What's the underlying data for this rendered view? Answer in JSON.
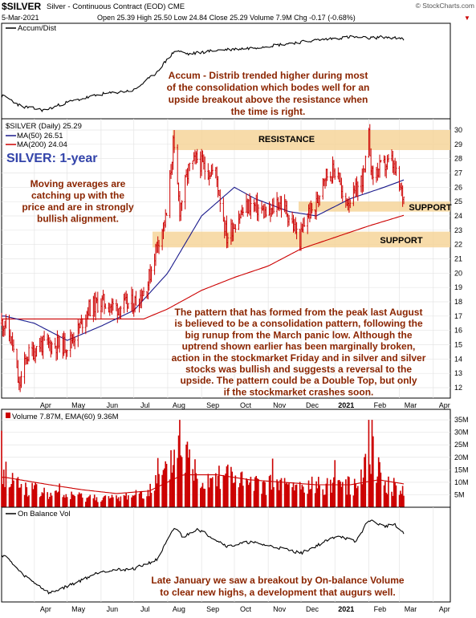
{
  "header": {
    "symbol": "$SILVER",
    "description": "Silver - Continuous Contract (EOD)",
    "exchange": "CME",
    "date": "5-Mar-2021",
    "quote": "Open 25.39  High 25.50  Low 24.84  Close 25.29  Volume 7.9M  Chg -0.17 (-0.68%)",
    "chg_arrow": "▼",
    "brand": "© StockCharts.com"
  },
  "labels": {
    "accum_panel": "Accum/Dist",
    "price_legend": "$SILVER (Daily) 25.29",
    "ma50_legend": "MA(50) 26.51",
    "ma200_legend": "MA(200) 24.04",
    "volume_legend": "Volume 7.87M, EMA(60) 9.36M",
    "obv_panel": "On Balance Vol",
    "resistance": "RESISTANCE",
    "support_upper": "SUPPORT",
    "support_lower": "SUPPORT",
    "big_title": "SILVER: 1-year"
  },
  "annotations": {
    "accum": [
      "Accum - Distrib trended higher during most",
      "of the consolidation which bodes well for an",
      "upside breakout above the resistance when",
      "the time is right."
    ],
    "moving_averages": [
      "Moving averages are",
      "catching up with the",
      "price and are in strongly",
      "bullish alignment."
    ],
    "pattern": [
      "The pattern that has formed from the peak last August",
      "is believed to be a consolidation pattern, following the",
      "big runup from the March panic low. Although the",
      "uptrend shown earlier has been marginally broken,",
      "action in the stockmarket Friday and in silver and silver",
      "stocks was bullish and suggests a reversal to the",
      "upside. The pattern could be a Double Top, but only",
      "if the stockmarket crashes soon."
    ],
    "obv": [
      "Late January we saw a breakout by On-balance Volume",
      "to clear new highs, a development that augurs well."
    ]
  },
  "colors": {
    "price": "#cc0000",
    "ma50": "#1a1a8c",
    "ma200": "#cc0000",
    "band": "#f6d59a",
    "annotation": "#8b2500",
    "title": "#3344aa",
    "volume_bar": "#cc0000",
    "volume_ema": "#cc0000",
    "line": "#000000"
  },
  "chart_data": {
    "type": "line",
    "title": "$SILVER (Daily) 25.29",
    "x_months": [
      "Apr",
      "May",
      "Jun",
      "Jul",
      "Aug",
      "Sep",
      "Oct",
      "Nov",
      "Dec",
      "2021",
      "Feb",
      "Mar",
      "Apr"
    ],
    "y_ticks": [
      12,
      13,
      14,
      15,
      16,
      17,
      18,
      19,
      20,
      21,
      22,
      23,
      24,
      25,
      26,
      27,
      28,
      29,
      30
    ],
    "ylim": [
      11.5,
      30.5
    ],
    "price_anchors": [
      [
        "2020-03-05",
        16.5
      ],
      [
        "2020-03-12",
        15.0
      ],
      [
        "2020-03-18",
        12.0
      ],
      [
        "2020-03-25",
        14.2
      ],
      [
        "2020-04-06",
        15.0
      ],
      [
        "2020-04-20",
        15.0
      ],
      [
        "2020-05-01",
        15.0
      ],
      [
        "2020-05-11",
        16.0
      ],
      [
        "2020-05-20",
        17.5
      ],
      [
        "2020-06-01",
        18.0
      ],
      [
        "2020-06-15",
        17.6
      ],
      [
        "2020-07-01",
        17.9
      ],
      [
        "2020-07-13",
        19.0
      ],
      [
        "2020-07-22",
        22.0
      ],
      [
        "2020-07-31",
        24.0
      ],
      [
        "2020-08-06",
        29.0
      ],
      [
        "2020-08-12",
        24.5
      ],
      [
        "2020-08-20",
        27.2
      ],
      [
        "2020-08-28",
        28.0
      ],
      [
        "2020-09-04",
        27.3
      ],
      [
        "2020-09-14",
        27.0
      ],
      [
        "2020-09-24",
        22.5
      ],
      [
        "2020-10-05",
        24.0
      ],
      [
        "2020-10-15",
        24.8
      ],
      [
        "2020-10-23",
        24.5
      ],
      [
        "2020-11-02",
        24.0
      ],
      [
        "2020-11-09",
        25.0
      ],
      [
        "2020-11-16",
        24.6
      ],
      [
        "2020-11-30",
        22.3
      ],
      [
        "2020-12-07",
        24.2
      ],
      [
        "2020-12-14",
        24.5
      ],
      [
        "2020-12-21",
        26.8
      ],
      [
        "2021-01-04",
        27.2
      ],
      [
        "2021-01-08",
        25.0
      ],
      [
        "2021-01-18",
        25.3
      ],
      [
        "2021-01-28",
        27.0
      ],
      [
        "2021-02-01",
        29.5
      ],
      [
        "2021-02-04",
        26.8
      ],
      [
        "2021-02-11",
        27.3
      ],
      [
        "2021-02-22",
        27.8
      ],
      [
        "2021-02-26",
        26.8
      ],
      [
        "2021-03-02",
        25.8
      ],
      [
        "2021-03-05",
        25.29
      ]
    ],
    "ma50_anchors": [
      [
        "2020-03-05",
        17.0
      ],
      [
        "2020-04-01",
        16.5
      ],
      [
        "2020-05-01",
        15.3
      ],
      [
        "2020-06-01",
        16.3
      ],
      [
        "2020-07-01",
        17.4
      ],
      [
        "2020-08-01",
        20.0
      ],
      [
        "2020-09-01",
        24.0
      ],
      [
        "2020-10-01",
        26.0
      ],
      [
        "2020-10-20",
        25.2
      ],
      [
        "2020-11-20",
        24.3
      ],
      [
        "2020-12-15",
        24.0
      ],
      [
        "2021-01-15",
        25.2
      ],
      [
        "2021-02-15",
        26.0
      ],
      [
        "2021-03-05",
        26.51
      ]
    ],
    "ma200_anchors": [
      [
        "2020-03-05",
        16.8
      ],
      [
        "2020-07-10",
        16.8
      ],
      [
        "2020-08-01",
        17.5
      ],
      [
        "2020-09-01",
        18.8
      ],
      [
        "2020-10-01",
        19.7
      ],
      [
        "2020-11-01",
        20.5
      ],
      [
        "2020-12-01",
        21.7
      ],
      [
        "2021-01-01",
        22.5
      ],
      [
        "2021-02-01",
        23.3
      ],
      [
        "2021-03-05",
        24.04
      ]
    ],
    "bands": [
      {
        "name": "resistance",
        "from": 28.6,
        "to": 30.0
      },
      {
        "name": "support-upper",
        "from": 24.3,
        "to": 25.0
      },
      {
        "name": "support-lower",
        "from": 21.8,
        "to": 22.9
      }
    ],
    "volume": {
      "y_ticks": [
        "5M",
        "10M",
        "15M",
        "20M",
        "25M",
        "30M",
        "35M"
      ],
      "ylim": [
        0,
        36
      ],
      "anchors": [
        [
          "2020-03-05",
          16
        ],
        [
          "2020-03-20",
          10
        ],
        [
          "2020-04-15",
          6
        ],
        [
          "2020-05-15",
          5
        ],
        [
          "2020-06-15",
          4
        ],
        [
          "2020-07-15",
          8
        ],
        [
          "2020-08-01",
          16
        ],
        [
          "2020-08-11",
          30
        ],
        [
          "2020-09-01",
          13
        ],
        [
          "2020-09-22",
          17
        ],
        [
          "2020-10-15",
          10
        ],
        [
          "2020-11-10",
          11
        ],
        [
          "2020-12-01",
          9
        ],
        [
          "2021-01-06",
          12
        ],
        [
          "2021-01-20",
          9
        ],
        [
          "2021-02-01",
          32
        ],
        [
          "2021-02-15",
          11
        ],
        [
          "2021-03-05",
          7.87
        ]
      ],
      "ema_anchors": [
        [
          "2020-03-05",
          12
        ],
        [
          "2020-04-15",
          9
        ],
        [
          "2020-05-15",
          7
        ],
        [
          "2020-06-15",
          5.5
        ],
        [
          "2020-07-15",
          6.5
        ],
        [
          "2020-08-15",
          13
        ],
        [
          "2020-09-15",
          13
        ],
        [
          "2020-10-15",
          11
        ],
        [
          "2020-11-15",
          10
        ],
        [
          "2020-12-15",
          9
        ],
        [
          "2021-01-15",
          9
        ],
        [
          "2021-02-10",
          11
        ],
        [
          "2021-03-05",
          9.36
        ]
      ]
    },
    "obv_anchors": [
      [
        "2020-03-05",
        0.9
      ],
      [
        "2020-03-20",
        0.5
      ],
      [
        "2020-04-15",
        0.05
      ],
      [
        "2020-05-10",
        0.3
      ],
      [
        "2020-06-01",
        0.55
      ],
      [
        "2020-07-01",
        0.6
      ],
      [
        "2020-07-22",
        0.8
      ],
      [
        "2020-08-08",
        1.55
      ],
      [
        "2020-08-15",
        1.3
      ],
      [
        "2020-08-28",
        1.5
      ],
      [
        "2020-09-25",
        1.1
      ],
      [
        "2020-10-15",
        1.2
      ],
      [
        "2020-11-15",
        1.05
      ],
      [
        "2020-12-01",
        0.95
      ],
      [
        "2021-01-04",
        1.35
      ],
      [
        "2021-01-20",
        1.2
      ],
      [
        "2021-02-01",
        1.7
      ],
      [
        "2021-02-15",
        1.55
      ],
      [
        "2021-02-25",
        1.6
      ],
      [
        "2021-03-05",
        1.38
      ]
    ],
    "accum_anchors": [
      [
        "2020-03-05",
        0.4
      ],
      [
        "2020-03-20",
        0.15
      ],
      [
        "2020-04-10",
        0.05
      ],
      [
        "2020-05-01",
        0.25
      ],
      [
        "2020-06-01",
        0.45
      ],
      [
        "2020-07-01",
        0.55
      ],
      [
        "2020-07-20",
        0.95
      ],
      [
        "2020-08-08",
        1.55
      ],
      [
        "2020-08-20",
        1.45
      ],
      [
        "2020-09-15",
        1.55
      ],
      [
        "2020-10-15",
        1.6
      ],
      [
        "2020-11-15",
        1.7
      ],
      [
        "2020-12-15",
        1.8
      ],
      [
        "2021-01-15",
        1.88
      ],
      [
        "2021-02-01",
        1.85
      ],
      [
        "2021-02-15",
        1.88
      ],
      [
        "2021-03-05",
        1.82
      ]
    ]
  }
}
